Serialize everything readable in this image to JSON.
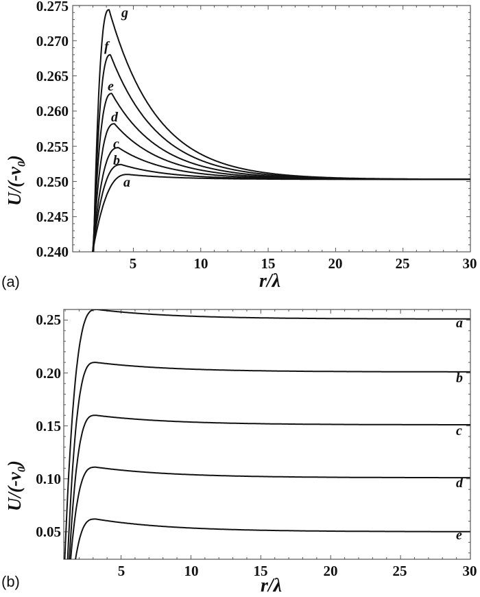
{
  "chart_data": [
    {
      "panel": "(a)",
      "type": "line",
      "title": "",
      "xlabel": "r/λ",
      "ylabel": "U/(-v0)",
      "xlim": [
        0.5,
        30
      ],
      "ylim": [
        0.24,
        0.275
      ],
      "x_ticks": [
        "5",
        "10",
        "15",
        "20",
        "25",
        "30"
      ],
      "y_ticks": [
        "0.240",
        "0.245",
        "0.250",
        "0.255",
        "0.260",
        "0.265",
        "0.270",
        "0.275"
      ],
      "grid": false,
      "legend": "inline curve labels",
      "series": [
        {
          "name": "a",
          "peak_x": 4.6,
          "peak_y": 0.251,
          "asymptote": 0.2503
        },
        {
          "name": "b",
          "peak_x": 4.1,
          "peak_y": 0.2524,
          "asymptote": 0.2503
        },
        {
          "name": "c",
          "peak_x": 3.9,
          "peak_y": 0.2548,
          "asymptote": 0.2503
        },
        {
          "name": "d",
          "peak_x": 3.6,
          "peak_y": 0.2582,
          "asymptote": 0.2503
        },
        {
          "name": "e",
          "peak_x": 3.4,
          "peak_y": 0.2625,
          "asymptote": 0.2503
        },
        {
          "name": "f",
          "peak_x": 3.3,
          "peak_y": 0.268,
          "asymptote": 0.2503
        },
        {
          "name": "g",
          "peak_x": 3.2,
          "peak_y": 0.2744,
          "asymptote": 0.2503
        }
      ]
    },
    {
      "panel": "(b)",
      "type": "line",
      "title": "",
      "xlabel": "r/λ",
      "ylabel": "U/(-v0)",
      "xlim": [
        0.9,
        30
      ],
      "ylim": [
        0.024,
        0.26
      ],
      "x_ticks": [
        "5",
        "10",
        "15",
        "20",
        "25",
        "30"
      ],
      "y_ticks": [
        "0.05",
        "0.10",
        "0.15",
        "0.20",
        "0.25"
      ],
      "grid": false,
      "legend": "inline curve labels at right edge",
      "series": [
        {
          "name": "a",
          "peak_x": 3.3,
          "peak_y": 0.26,
          "asymptote": 0.251
        },
        {
          "name": "b",
          "peak_x": 3.2,
          "peak_y": 0.21,
          "asymptote": 0.201
        },
        {
          "name": "c",
          "peak_x": 3.2,
          "peak_y": 0.16,
          "asymptote": 0.151
        },
        {
          "name": "d",
          "peak_x": 3.2,
          "peak_y": 0.111,
          "asymptote": 0.101
        },
        {
          "name": "e",
          "peak_x": 3.2,
          "peak_y": 0.062,
          "asymptote": 0.05
        }
      ]
    }
  ],
  "panels": {
    "a": {
      "label": "(a)",
      "xlabel": "r/λ",
      "ylabel_main": "U/(-v",
      "ylabel_sub": "0",
      "ylabel_end": ")",
      "y_ticks": [
        "0.275",
        "0.270",
        "0.265",
        "0.260",
        "0.255",
        "0.250",
        "0.245",
        "0.240"
      ],
      "x_ticks": [
        "5",
        "10",
        "15",
        "20",
        "25",
        "30"
      ],
      "curve_labels": [
        "a",
        "b",
        "c",
        "d",
        "e",
        "f",
        "g"
      ]
    },
    "b": {
      "label": "(b)",
      "xlabel": "r/λ",
      "ylabel_main": "U/(-v",
      "ylabel_sub": "0",
      "ylabel_end": ")",
      "y_ticks": [
        "0.25",
        "0.20",
        "0.15",
        "0.10",
        "0.05"
      ],
      "x_ticks": [
        "5",
        "10",
        "15",
        "20",
        "25",
        "30"
      ],
      "curve_labels": [
        "a",
        "b",
        "c",
        "d",
        "e"
      ]
    }
  }
}
